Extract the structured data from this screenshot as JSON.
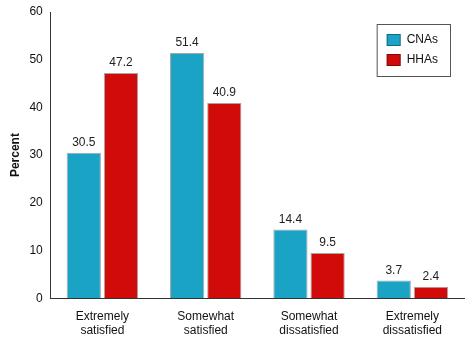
{
  "chart_data": {
    "type": "bar",
    "categories": [
      "Extremely satisfied",
      "Somewhat satisfied",
      "Somewhat dissatisfied",
      "Extremely dissatisfied"
    ],
    "series": [
      {
        "name": "CNAs",
        "color": "#1ba3c6",
        "values": [
          30.5,
          51.4,
          14.4,
          3.7
        ]
      },
      {
        "name": "HHAs",
        "color": "#d10a0a",
        "values": [
          47.2,
          40.9,
          9.5,
          2.4
        ]
      }
    ],
    "y_label": "Percent",
    "ylim": [
      0,
      60
    ],
    "yticks": [
      0,
      10,
      20,
      30,
      40,
      50,
      60
    ],
    "grid": false,
    "legend": "upper right",
    "data_labels": true
  }
}
